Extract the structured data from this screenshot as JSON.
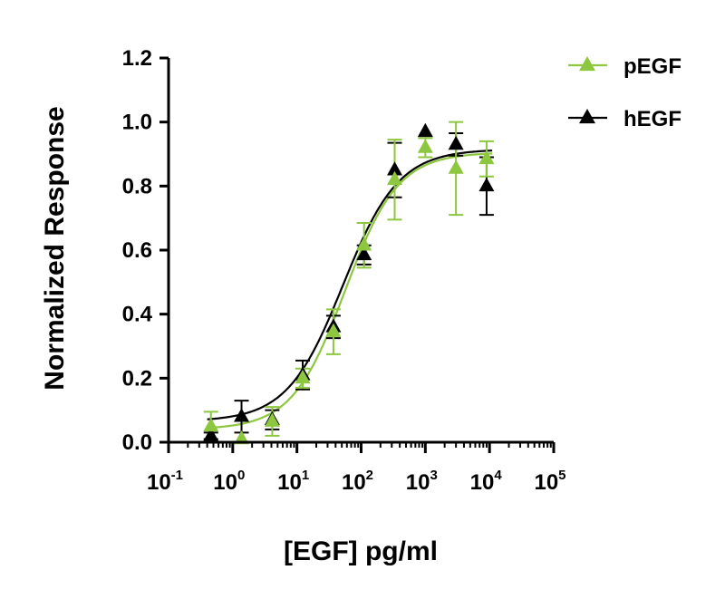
{
  "chart_data": {
    "type": "scatter",
    "xscale": "log",
    "xlabel": "[EGF] pg/ml",
    "ylabel": "Normalized Response",
    "xlim": [
      0.1,
      100000
    ],
    "ylim": [
      0,
      1.2
    ],
    "yticks": [
      "0.0",
      "0.2",
      "0.4",
      "0.6",
      "0.8",
      "1.0",
      "1.2"
    ],
    "xticks": [
      {
        "base": "10",
        "exp": "-1",
        "value": 0.1
      },
      {
        "base": "10",
        "exp": "0",
        "value": 1
      },
      {
        "base": "10",
        "exp": "1",
        "value": 10
      },
      {
        "base": "10",
        "exp": "2",
        "value": 100
      },
      {
        "base": "10",
        "exp": "3",
        "value": 1000
      },
      {
        "base": "10",
        "exp": "4",
        "value": 10000
      },
      {
        "base": "10",
        "exp": "5",
        "value": 100000
      }
    ],
    "grid": false,
    "legend_position": "top-right",
    "series": [
      {
        "name": "hEGF",
        "color": "#000000",
        "marker": "triangle",
        "fit": {
          "bottom": 0.065,
          "top": 0.915,
          "ec50": 52,
          "hill": 1.0
        },
        "points": [
          {
            "x": 0.457,
            "y": 0.02,
            "err": 0.01
          },
          {
            "x": 1.37,
            "y": 0.08,
            "err": 0.05
          },
          {
            "x": 4.12,
            "y": 0.07,
            "err": 0.03
          },
          {
            "x": 12.3,
            "y": 0.21,
            "err": 0.045
          },
          {
            "x": 37.0,
            "y": 0.36,
            "err": 0.035
          },
          {
            "x": 111,
            "y": 0.585,
            "err": 0.03
          },
          {
            "x": 333,
            "y": 0.85,
            "err": 0.085
          },
          {
            "x": 1000,
            "y": 0.97,
            "err": 0.0
          },
          {
            "x": 3000,
            "y": 0.93,
            "err": 0.035
          },
          {
            "x": 9000,
            "y": 0.8,
            "err": 0.09
          }
        ]
      },
      {
        "name": "pEGF",
        "color": "#8dc63f",
        "marker": "triangle",
        "fit": {
          "bottom": 0.04,
          "top": 0.905,
          "ec50": 56,
          "hill": 1.05
        },
        "points": [
          {
            "x": 0.457,
            "y": 0.05,
            "err": 0.045
          },
          {
            "x": 1.37,
            "y": 0.01,
            "err": 0.0
          },
          {
            "x": 4.12,
            "y": 0.065,
            "err": 0.045
          },
          {
            "x": 12.3,
            "y": 0.2,
            "err": 0.03
          },
          {
            "x": 37.0,
            "y": 0.345,
            "err": 0.07
          },
          {
            "x": 111,
            "y": 0.615,
            "err": 0.07
          },
          {
            "x": 333,
            "y": 0.82,
            "err": 0.125
          },
          {
            "x": 1000,
            "y": 0.92,
            "err": 0.03
          },
          {
            "x": 3000,
            "y": 0.855,
            "err": 0.145
          },
          {
            "x": 9000,
            "y": 0.885,
            "err": 0.055
          }
        ]
      }
    ],
    "legend_order": [
      "pEGF",
      "hEGF"
    ]
  }
}
